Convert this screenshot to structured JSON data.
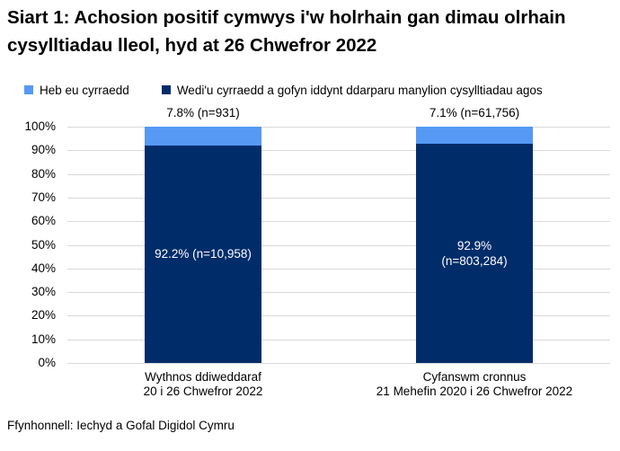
{
  "title": "Siart 1: Achosion positif cymwys i'w holrhain gan dimau olrhain cysylltiadau lleol, hyd at 26 Chwefror 2022",
  "legend": {
    "items": [
      {
        "label": "Heb eu cyrraedd",
        "color": "#5599F5"
      },
      {
        "label": "Wedi'u cyrraedd a gofyn iddynt ddarparu manylion cysylltiadau agos",
        "color": "#002D6A"
      }
    ]
  },
  "footer": {
    "source": "Ffynhonnell: Iechyd a Gofal Digidol Cymru"
  },
  "chart_data": {
    "type": "bar",
    "stacked": true,
    "unit": "percent",
    "title": "Siart 1: Achosion positif cymwys i'w holrhain gan dimau olrhain cysylltiadau lleol, hyd at 26 Chwefror 2022",
    "categories": [
      {
        "lines": [
          "Wythnos ddiweddaraf",
          "20 i 26 Chwefror 2022"
        ]
      },
      {
        "lines": [
          "Cyfanswm cronnus",
          "21 Mehefin 2020 i 26 Chwefror 2022"
        ]
      }
    ],
    "series": [
      {
        "name": "Wedi'u cyrraedd a gofyn iddynt ddarparu manylion cysylltiadau agos",
        "color": "#002D6A",
        "values": [
          92.2,
          92.9
        ],
        "inside_labels": [
          [
            "92.2% (n=10,958)"
          ],
          [
            "92.9%",
            "(n=803,284)"
          ]
        ],
        "label_color": "#FFFFFF"
      },
      {
        "name": "Heb eu cyrraedd",
        "color": "#5599F5",
        "values": [
          7.8,
          7.1
        ],
        "outside_labels": [
          "7.8% (n=931)",
          "7.1% (n=61,756)"
        ]
      }
    ],
    "xlabel": "",
    "ylabel": "",
    "ylim": [
      0,
      100
    ],
    "yticks": [
      "0%",
      "10%",
      "20%",
      "30%",
      "40%",
      "50%",
      "60%",
      "70%",
      "80%",
      "90%",
      "100%"
    ],
    "grid": true,
    "gridline_color": "#D9D9D9",
    "legend_position": "top"
  }
}
